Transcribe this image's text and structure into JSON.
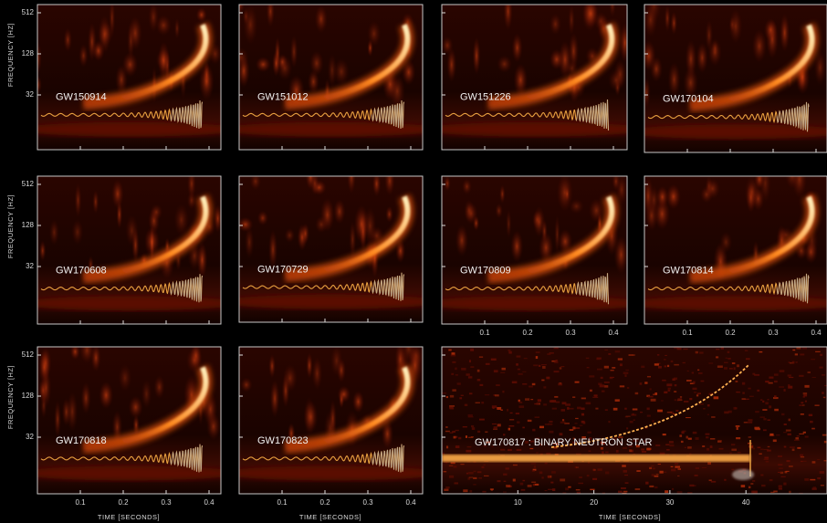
{
  "y_axis_label": "FREQUENCY [HZ]",
  "y_ticks": [
    512,
    128,
    32
  ],
  "x_axis_label": "TIME [SECONDS]",
  "x_ticks": [
    0.1,
    0.2,
    0.3,
    0.4
  ],
  "bns_x_ticks": [
    10,
    20,
    30,
    40
  ],
  "panels": [
    {
      "label": "GW150914"
    },
    {
      "label": "GW151012"
    },
    {
      "label": "GW151226"
    },
    {
      "label": "GW170104"
    },
    {
      "label": "GW170608"
    },
    {
      "label": "GW170729"
    },
    {
      "label": "GW170809"
    },
    {
      "label": "GW170814"
    },
    {
      "label": "GW170818"
    },
    {
      "label": "GW170823"
    },
    {
      "label": "GW170817 : BINARY NEUTRON STAR"
    }
  ]
}
